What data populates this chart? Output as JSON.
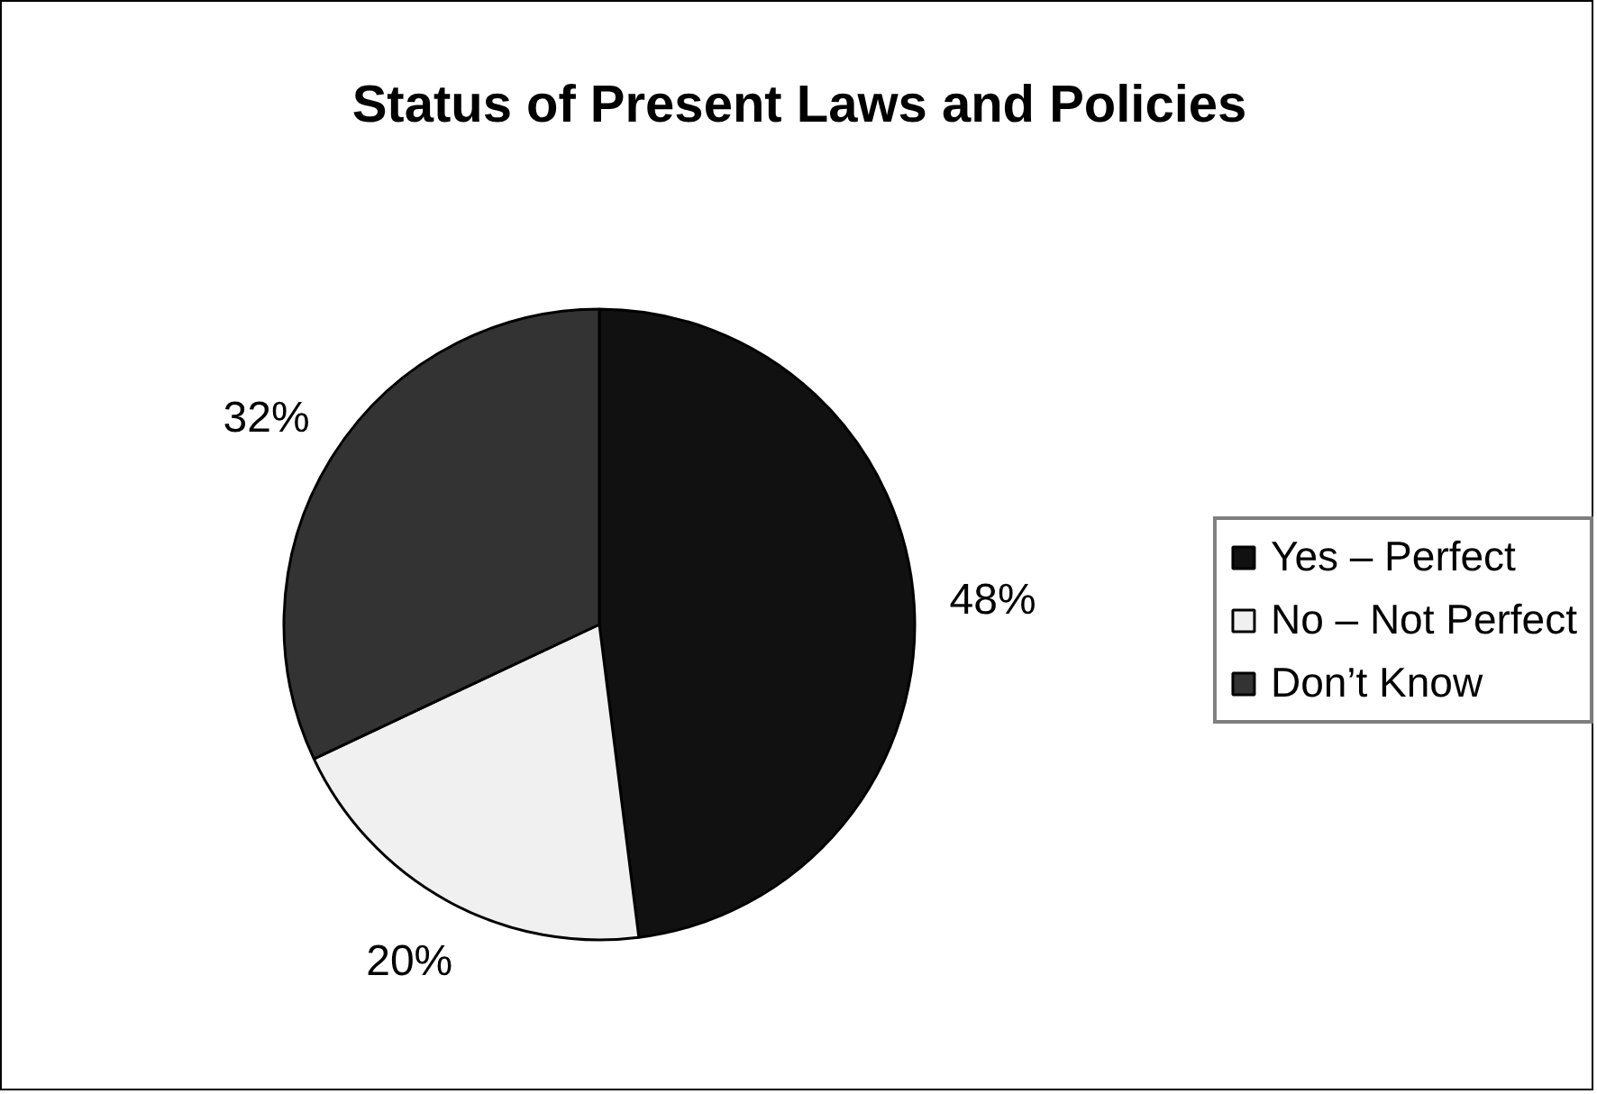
{
  "chart_data": {
    "type": "pie",
    "title": "Status of Present Laws and Policies",
    "categories": [
      "Yes – Perfect",
      "No – Not Perfect",
      "Don’t Know"
    ],
    "values": [
      48,
      20,
      32
    ],
    "colors": [
      "#111111",
      "#f0f0f0",
      "#333333"
    ],
    "value_labels": [
      "48%",
      "20%",
      "32%"
    ],
    "legend": "right"
  }
}
